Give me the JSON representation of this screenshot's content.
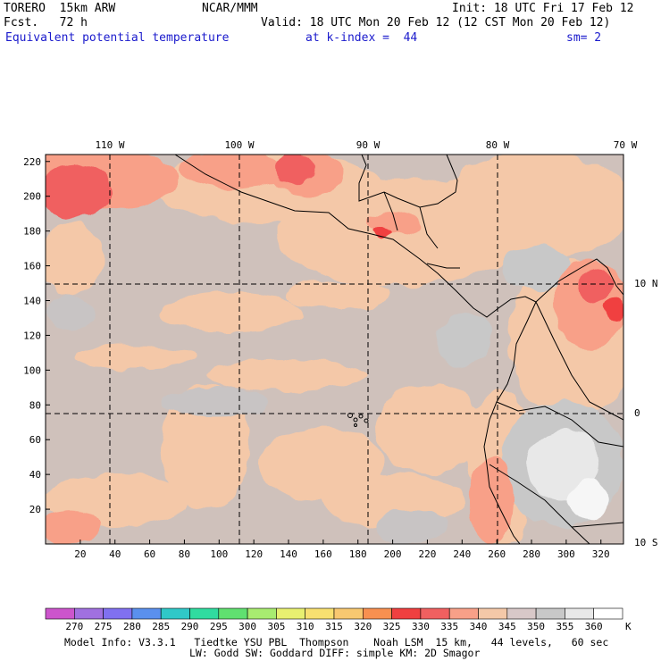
{
  "header": {
    "model": "TORERO  15km ARW",
    "org": "NCAR/MMM",
    "init": "Init: 18 UTC Fri 17 Feb 12",
    "fcst": "Fcst.   72 h",
    "valid": "Valid: 18 UTC Mon 20 Feb 12 (12 CST Mon 20 Feb 12)",
    "field": "Equivalent potential temperature",
    "level": "at k-index =  44",
    "smooth": "sm= 2"
  },
  "map": {
    "lon_labels": [
      "110 W",
      "100 W",
      "90 W",
      "80 W",
      "70 W"
    ],
    "lat_labels": [
      "10 N",
      "0",
      "10 S"
    ],
    "x_ticks": [
      "20",
      "40",
      "60",
      "80",
      "100",
      "120",
      "140",
      "160",
      "180",
      "200",
      "220",
      "240",
      "260",
      "280",
      "300",
      "320"
    ],
    "y_ticks": [
      "20",
      "40",
      "60",
      "80",
      "100",
      "120",
      "140",
      "160",
      "180",
      "200",
      "220"
    ]
  },
  "colorbar": {
    "labels": [
      "270",
      "275",
      "280",
      "285",
      "290",
      "295",
      "300",
      "305",
      "310",
      "315",
      "320",
      "325",
      "330",
      "335",
      "340",
      "345",
      "350",
      "355",
      "360"
    ],
    "unit": "K",
    "colors": [
      "#cc55cc",
      "#a070e0",
      "#8070f0",
      "#5a90ee",
      "#30c8c8",
      "#30dca0",
      "#60e070",
      "#a8ec70",
      "#e8f070",
      "#f8e070",
      "#f8c870",
      "#f89050",
      "#f04040",
      "#f06060",
      "#f8a088",
      "#f4c8a8",
      "#d8c8c8",
      "#c8c8c8",
      "#e8e8e8",
      "#ffffff"
    ]
  },
  "footer": {
    "line1": "Model Info: V3.3.1   Tiedtke YSU PBL  Thompson    Noah LSM  15 km,   44 levels,   60 sec",
    "line2": "LW: Godd SW: Goddard DIFF: simple KM: 2D Smagor"
  }
}
